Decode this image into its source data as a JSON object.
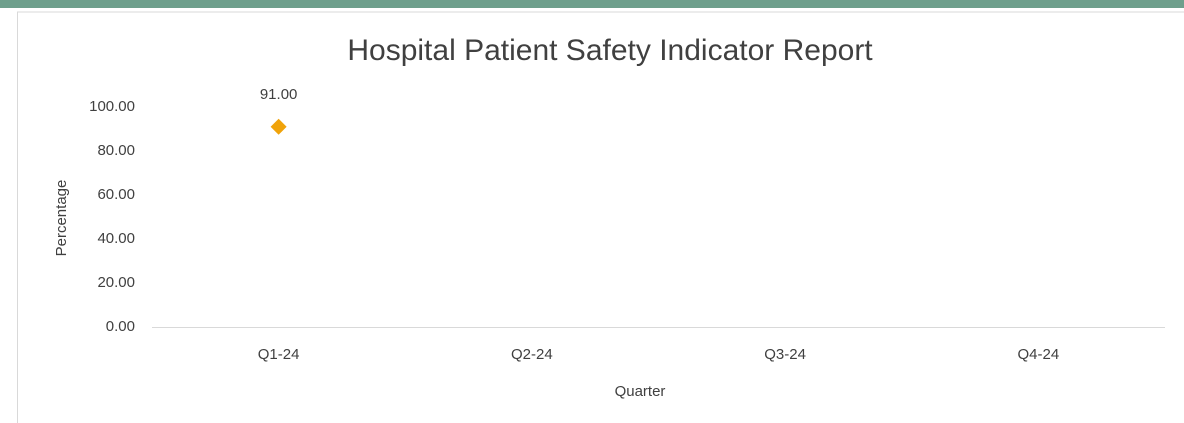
{
  "chart_data": {
    "type": "line",
    "title": "Hospital Patient Safety Indicator Report",
    "x_label": "Quarter",
    "y_label": "Percentage",
    "categories": [
      "Q1-24",
      "Q2-24",
      "Q3-24",
      "Q4-24"
    ],
    "series": [
      {
        "name": "Percentage",
        "color": "#f0a30a",
        "marker": "diamond",
        "values": [
          91,
          null,
          null,
          null
        ],
        "value_labels": [
          "91.00",
          null,
          null,
          null
        ]
      }
    ],
    "ylim": [
      0,
      100
    ],
    "yticks": [
      {
        "value": 0,
        "label": "0.00"
      },
      {
        "value": 20,
        "label": "20.00"
      },
      {
        "value": 40,
        "label": "40.00"
      },
      {
        "value": 60,
        "label": "60.00"
      },
      {
        "value": 80,
        "label": "80.00"
      },
      {
        "value": 100,
        "label": "100.00"
      }
    ],
    "grid": false
  }
}
